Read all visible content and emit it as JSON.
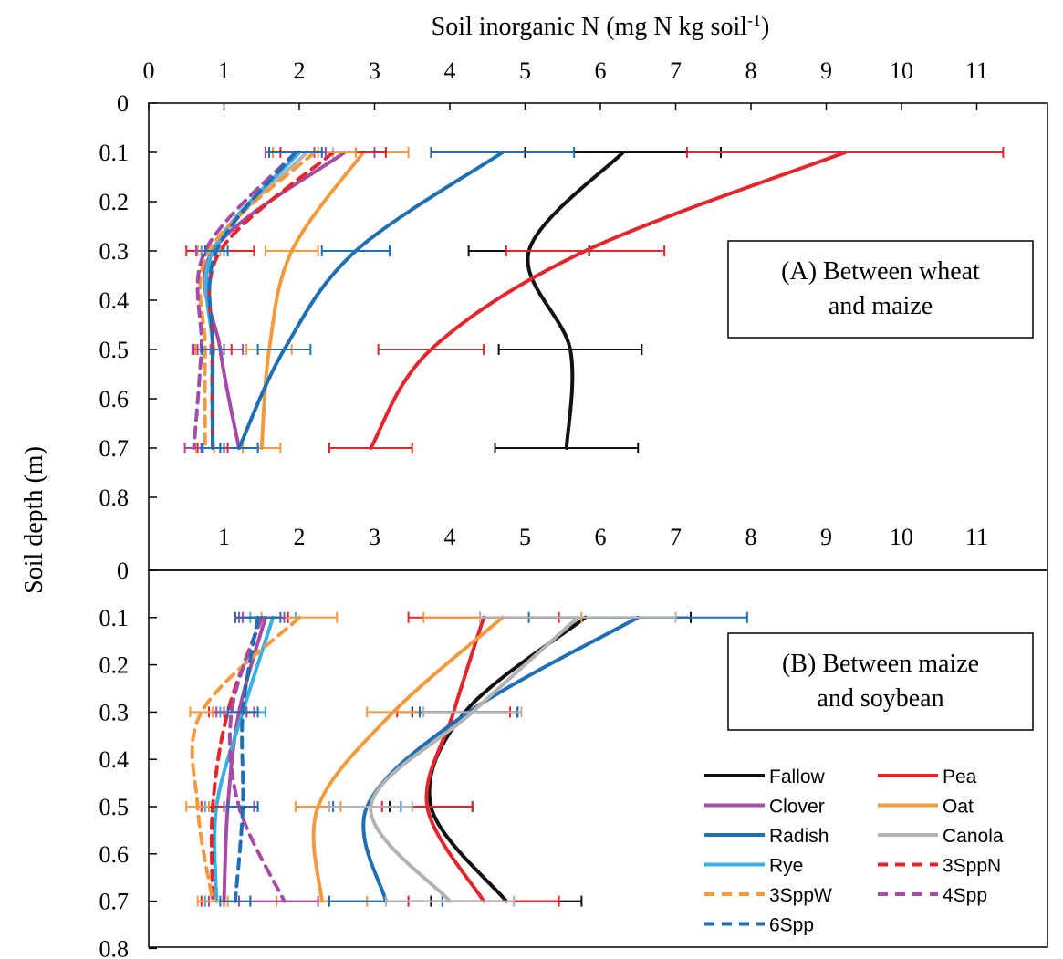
{
  "title": "Soil inorganic N (mg N kg soil",
  "title_superscript": "-1",
  "title_end": ")",
  "ylabel": "Soil depth (m)",
  "colors": {
    "Fallow": "#111111",
    "Pea": "#e3262b",
    "Clover": "#a64ca6",
    "Oat": "#f39a3f",
    "Radish": "#1f6fb4",
    "Canola": "#b3b3b3",
    "Rye": "#3ab0e2",
    "3SppN": "#e3262b",
    "3SppW": "#f39a3f",
    "4Spp": "#a64ca6",
    "6Spp": "#1f6fb4"
  },
  "legend": [
    {
      "name": "Fallow",
      "dashed": false
    },
    {
      "name": "Pea",
      "dashed": false
    },
    {
      "name": "Clover",
      "dashed": false
    },
    {
      "name": "Oat",
      "dashed": false
    },
    {
      "name": "Radish",
      "dashed": false
    },
    {
      "name": "Canola",
      "dashed": false
    },
    {
      "name": "Rye",
      "dashed": false
    },
    {
      "name": "3SppN",
      "dashed": true
    },
    {
      "name": "3SppW",
      "dashed": true
    },
    {
      "name": "4Spp",
      "dashed": true
    },
    {
      "name": "6Spp",
      "dashed": true
    }
  ],
  "chart_data": [
    {
      "type": "line",
      "panel_label_lines": [
        "(A) Between wheat",
        "and maize"
      ],
      "x_ticks_top": [
        "0",
        "1",
        "2",
        "3",
        "4",
        "5",
        "6",
        "7",
        "8",
        "9",
        "10",
        "11"
      ],
      "x_ticks_inside": [
        "1",
        "2",
        "3",
        "4",
        "5",
        "6",
        "7",
        "8",
        "9",
        "10",
        "11"
      ],
      "y_ticks": [
        "0",
        "0.1",
        "0.2",
        "0.3",
        "0.4",
        "0.5",
        "0.6",
        "0.7",
        "0.8"
      ],
      "xlim": [
        0,
        11.6
      ],
      "ylim": [
        0,
        0.95
      ],
      "depths": [
        0.1,
        0.3,
        0.5,
        0.7
      ],
      "series": [
        {
          "name": "Fallow",
          "x": [
            6.3,
            5.05,
            5.6,
            5.55
          ],
          "err": [
            1.3,
            0.8,
            0.95,
            0.95
          ]
        },
        {
          "name": "Pea",
          "x": [
            9.25,
            5.8,
            3.75,
            2.95
          ],
          "err": [
            2.1,
            1.05,
            0.7,
            0.55
          ]
        },
        {
          "name": "Clover",
          "x": [
            2.6,
            0.85,
            0.95,
            1.2
          ],
          "err": [
            0.4,
            0.15,
            0.3,
            0.25
          ]
        },
        {
          "name": "Oat",
          "x": [
            2.85,
            1.9,
            1.6,
            1.5
          ],
          "err": [
            0.6,
            0.35,
            0.3,
            0.25
          ]
        },
        {
          "name": "Radish",
          "x": [
            4.7,
            2.75,
            1.8,
            1.2
          ],
          "err": [
            0.95,
            0.45,
            0.35,
            0.25
          ]
        },
        {
          "name": "Canola",
          "x": [
            2.1,
            0.85,
            0.85,
            0.85
          ],
          "err": [
            0.35,
            0.15,
            0.15,
            0.15
          ]
        },
        {
          "name": "Rye",
          "x": [
            2.0,
            0.85,
            0.85,
            0.85
          ],
          "err": [
            0.35,
            0.15,
            0.15,
            0.15
          ]
        },
        {
          "name": "3SppN",
          "x": [
            2.45,
            0.95,
            0.85,
            0.85
          ],
          "err": [
            0.7,
            0.45,
            0.25,
            0.2
          ]
        },
        {
          "name": "3SppW",
          "x": [
            2.2,
            0.8,
            0.75,
            0.75
          ],
          "err": [
            0.55,
            0.15,
            0.12,
            0.12
          ]
        },
        {
          "name": "4Spp",
          "x": [
            1.95,
            0.75,
            0.7,
            0.6
          ],
          "err": [
            0.4,
            0.12,
            0.12,
            0.12
          ]
        },
        {
          "name": "6Spp",
          "x": [
            1.95,
            0.9,
            0.85,
            0.85
          ],
          "err": [
            0.35,
            0.15,
            0.15,
            0.15
          ]
        }
      ]
    },
    {
      "type": "line",
      "panel_label_lines": [
        "(B) Between maize",
        "and soybean"
      ],
      "x_ticks_top": [],
      "x_ticks_inside": [],
      "y_ticks": [
        "0",
        "0.1",
        "0.2",
        "0.3",
        "0.4",
        "0.5",
        "0.6",
        "0.7",
        "0.8"
      ],
      "xlim": [
        0,
        11.6
      ],
      "ylim": [
        0,
        0.8
      ],
      "depths": [
        0.1,
        0.3,
        0.5,
        0.7
      ],
      "series": [
        {
          "name": "Fallow",
          "x": [
            5.8,
            4.2,
            3.75,
            4.75
          ],
          "err": [
            1.4,
            0.7,
            0.55,
            1.0
          ]
        },
        {
          "name": "Pea",
          "x": [
            4.45,
            4.05,
            3.7,
            4.45
          ],
          "err": [
            1.0,
            0.75,
            0.6,
            1.0
          ]
        },
        {
          "name": "Clover",
          "x": [
            1.55,
            1.2,
            1.05,
            1.0
          ],
          "err": [
            0.3,
            0.2,
            0.15,
            0.2
          ]
        },
        {
          "name": "Oat",
          "x": [
            4.7,
            3.25,
            2.25,
            2.3
          ],
          "err": [
            1.05,
            0.35,
            0.3,
            0.6
          ]
        },
        {
          "name": "Radish",
          "x": [
            6.5,
            4.25,
            2.9,
            3.15
          ],
          "err": [
            1.45,
            0.65,
            0.45,
            0.75
          ]
        },
        {
          "name": "Canola",
          "x": [
            5.7,
            4.3,
            2.95,
            4.0
          ],
          "err": [
            1.3,
            0.65,
            0.55,
            0.85
          ]
        },
        {
          "name": "Rye",
          "x": [
            1.65,
            1.25,
            0.9,
            0.9
          ],
          "err": [
            0.3,
            0.3,
            0.15,
            0.15
          ]
        },
        {
          "name": "3SppN",
          "x": [
            1.5,
            1.05,
            0.85,
            0.85
          ],
          "err": [
            0.35,
            0.25,
            0.15,
            0.15
          ]
        },
        {
          "name": "3SppW",
          "x": [
            2.0,
            0.7,
            0.65,
            0.85
          ],
          "err": [
            0.5,
            0.15,
            0.15,
            0.2
          ]
        },
        {
          "name": "4Spp",
          "x": [
            1.5,
            1.1,
            1.2,
            1.8
          ],
          "err": [
            0.3,
            0.2,
            0.2,
            0.45
          ]
        },
        {
          "name": "6Spp",
          "x": [
            1.45,
            1.25,
            1.25,
            1.15
          ],
          "err": [
            0.3,
            0.2,
            0.2,
            0.2
          ]
        }
      ]
    }
  ]
}
